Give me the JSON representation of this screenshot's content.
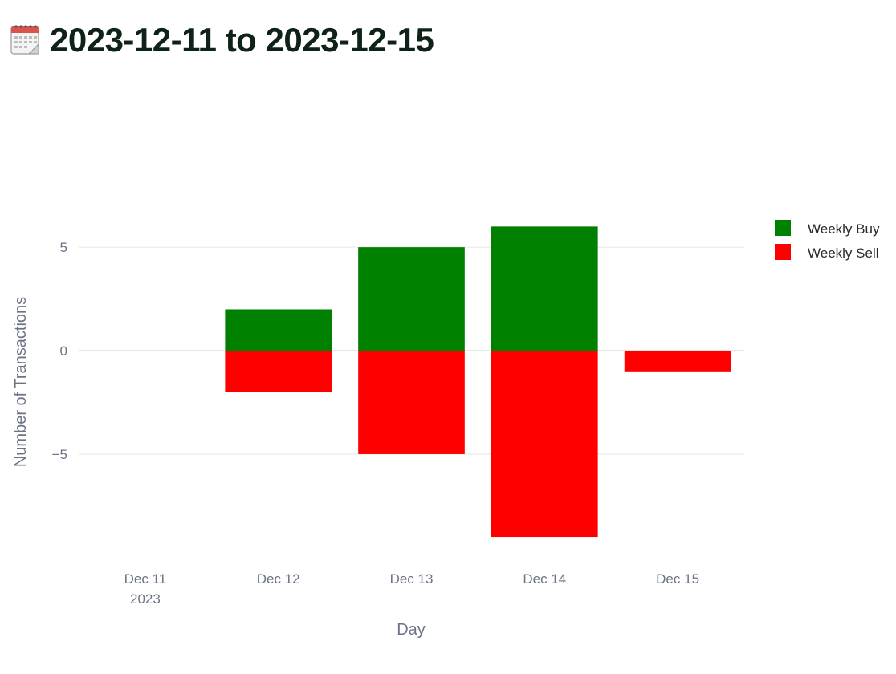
{
  "page": {
    "title": "2023-12-11 to 2023-12-15",
    "icon": "calendar-icon"
  },
  "colors": {
    "buy": "#008000",
    "sell": "#ff0000",
    "title_text": "#0e2218",
    "axis_text": "#6b7385",
    "grid": "#e6e6e6"
  },
  "chart_data": {
    "type": "bar",
    "barmode": "relative",
    "title": "",
    "xlabel": "Day",
    "ylabel": "Number of Transactions",
    "categories": [
      "2023-12-11",
      "2023-12-12",
      "2023-12-13",
      "2023-12-14",
      "2023-12-15"
    ],
    "x_tick_labels": [
      [
        "Dec 11",
        "2023"
      ],
      [
        "Dec 12"
      ],
      [
        "Dec 13"
      ],
      [
        "Dec 14"
      ],
      [
        "Dec 15"
      ]
    ],
    "series": [
      {
        "name": "Weekly Buy",
        "color": "#008000",
        "values": [
          0,
          2,
          5,
          6,
          0
        ]
      },
      {
        "name": "Weekly Sell",
        "color": "#ff0000",
        "values": [
          0,
          -2,
          -5,
          -9,
          -1
        ]
      }
    ],
    "y_ticks": [
      {
        "value": 5,
        "label": "5"
      },
      {
        "value": 0,
        "label": "0"
      },
      {
        "value": -5,
        "label": "−5"
      }
    ],
    "ylim": [
      -10.2,
      7.1
    ],
    "grid": true,
    "legend_position": "top-right"
  }
}
